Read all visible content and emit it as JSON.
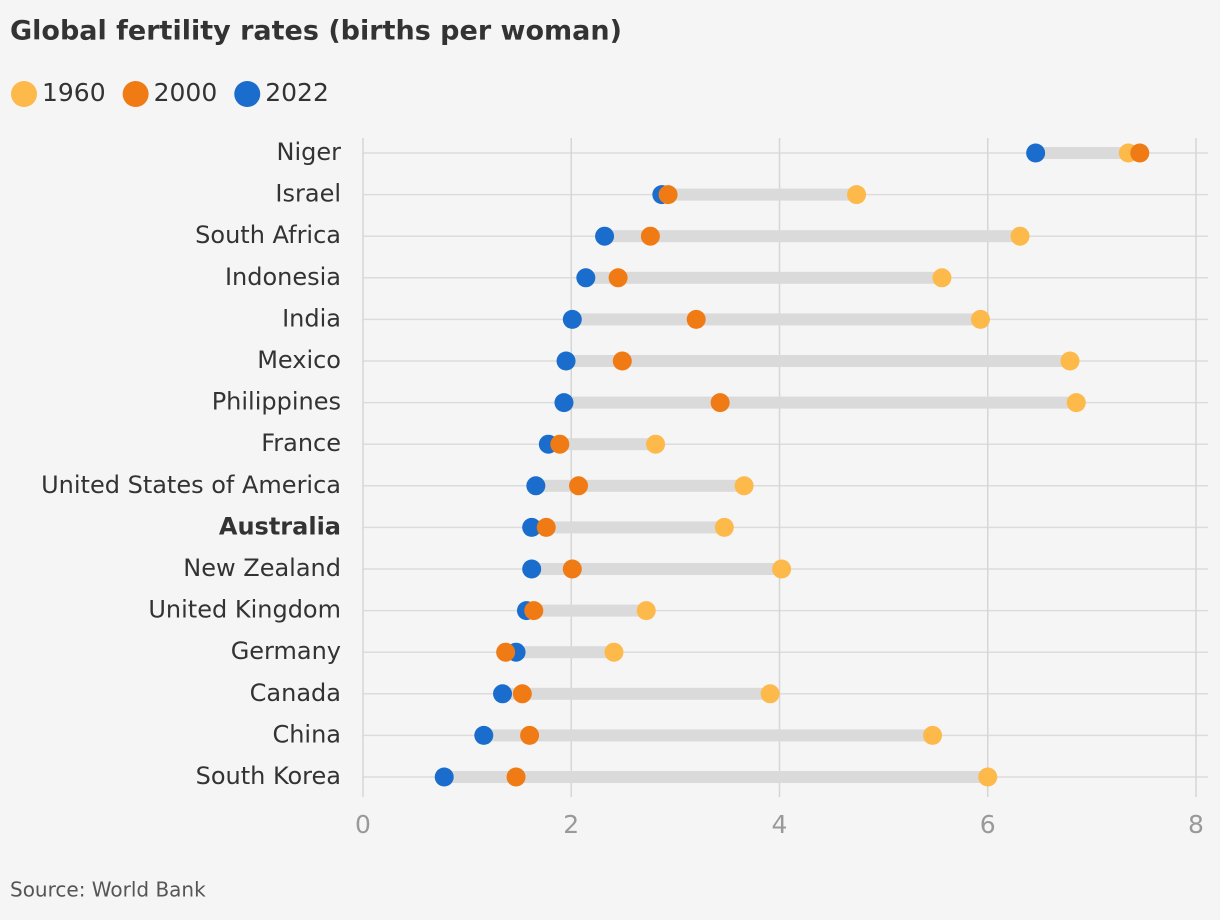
{
  "chart_data": {
    "type": "dumbbell",
    "title": "Global fertility rates (births per woman)",
    "categories": [
      "Niger",
      "Israel",
      "South Africa",
      "Indonesia",
      "India",
      "Mexico",
      "Philippines",
      "France",
      "United States of America",
      "Australia",
      "New Zealand",
      "United Kingdom",
      "Germany",
      "Canada",
      "China",
      "South Korea"
    ],
    "series": [
      {
        "name": "1960",
        "color": "#fdb94a",
        "values": [
          7.35,
          4.74,
          6.31,
          5.56,
          5.93,
          6.79,
          6.85,
          2.81,
          3.66,
          3.47,
          4.02,
          2.72,
          2.41,
          3.91,
          5.47,
          6.0
        ]
      },
      {
        "name": "2000",
        "color": "#f07a14",
        "values": [
          7.46,
          2.93,
          2.76,
          2.45,
          3.2,
          2.49,
          3.43,
          1.89,
          2.07,
          1.76,
          2.01,
          1.64,
          1.37,
          1.53,
          1.6,
          1.47
        ]
      },
      {
        "name": "2022",
        "color": "#1a6dcc",
        "values": [
          6.46,
          2.87,
          2.32,
          2.14,
          2.01,
          1.95,
          1.93,
          1.78,
          1.66,
          1.62,
          1.62,
          1.57,
          1.47,
          1.34,
          1.16,
          0.78
        ]
      }
    ],
    "xlim": [
      0,
      8
    ],
    "xticks": [
      0,
      2,
      4,
      6,
      8
    ],
    "grid": true,
    "source": "Source: World Bank"
  }
}
